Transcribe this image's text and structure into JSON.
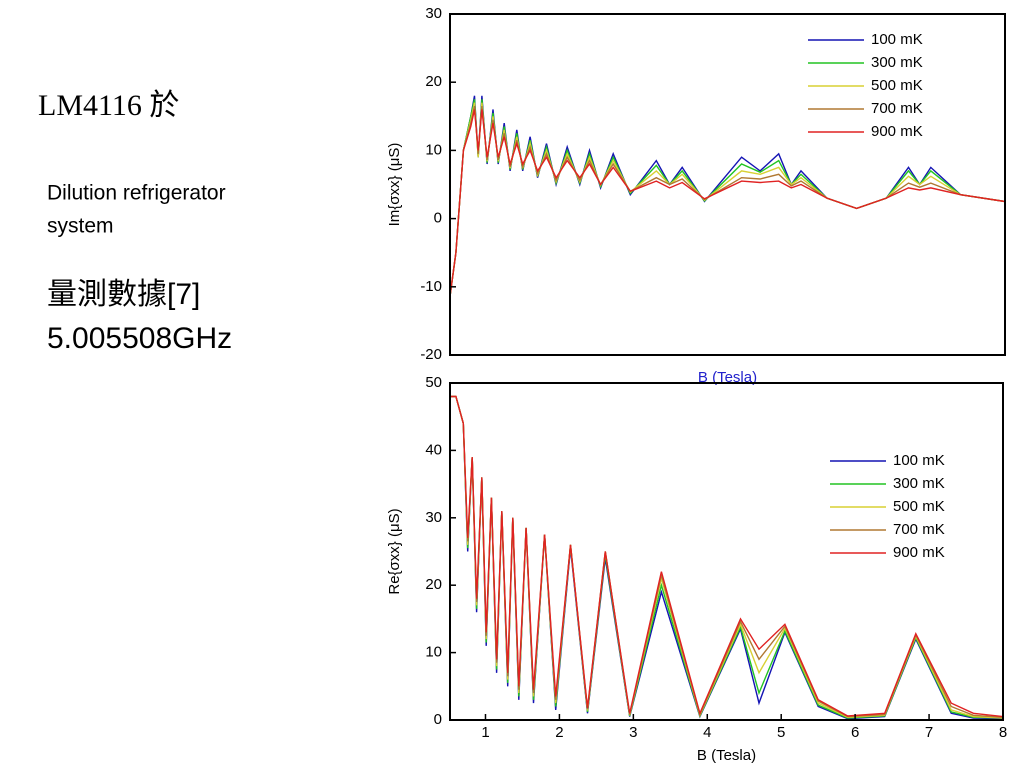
{
  "slide": {
    "title": "LM4116 於",
    "subtitle_lines": [
      "Dilution refrigerator",
      "system"
    ],
    "notes": [
      "量測數據[7]",
      "5.005508GHz"
    ]
  },
  "chart_data": [
    {
      "type": "line",
      "xlabel": "B (Tesla)",
      "ylabel": "Im{σxx} (μS)",
      "xlim": [
        0.52,
        8
      ],
      "ylim": [
        -20,
        30
      ],
      "yticks": [
        -20,
        -10,
        0,
        10,
        20,
        30
      ],
      "x": [
        0.5,
        0.6,
        0.7,
        0.8,
        0.85,
        0.9,
        0.95,
        1.02,
        1.1,
        1.17,
        1.25,
        1.33,
        1.42,
        1.5,
        1.6,
        1.7,
        1.82,
        1.95,
        2.1,
        2.27,
        2.4,
        2.55,
        2.72,
        2.95,
        3.3,
        3.48,
        3.65,
        3.95,
        4.45,
        4.7,
        4.95,
        5.12,
        5.25,
        5.6,
        6.0,
        6.4,
        6.7,
        6.85,
        7.0,
        7.4,
        8
      ],
      "series": [
        {
          "name": "100 mK",
          "color": "#1414b4",
          "values": [
            -13,
            -5,
            10,
            15,
            18,
            9,
            18,
            8,
            16,
            8,
            14,
            7,
            13,
            7,
            12,
            6,
            11,
            5,
            10.5,
            5,
            10,
            4.5,
            9.5,
            3.5,
            8.5,
            5,
            7.5,
            2.5,
            9,
            7,
            9.5,
            5,
            7,
            3,
            1.5,
            3,
            7.5,
            5,
            7.5,
            3.5,
            2.5
          ]
        },
        {
          "name": "300 mK",
          "color": "#22c422",
          "values": [
            -13,
            -5,
            10,
            15,
            17.5,
            9,
            17.5,
            8.2,
            15.5,
            8.2,
            13.5,
            7.2,
            12.5,
            7.2,
            11.5,
            6.2,
            10.5,
            5.2,
            10,
            5.2,
            9.5,
            4.7,
            9,
            3.7,
            7.8,
            5,
            7,
            2.6,
            8,
            6.8,
            8.5,
            5,
            6.5,
            3,
            1.5,
            3,
            7,
            5,
            7,
            3.5,
            2.5
          ]
        },
        {
          "name": "500 mK",
          "color": "#d8d034",
          "values": [
            -13,
            -5,
            10,
            14.5,
            17,
            9,
            17,
            8.4,
            15,
            8.4,
            13,
            7.4,
            12,
            7.4,
            11,
            6.4,
            10,
            5.4,
            9.5,
            5.4,
            9,
            4.9,
            8.5,
            3.9,
            7,
            5,
            6.5,
            2.7,
            7,
            6.5,
            7.5,
            5,
            6,
            3,
            1.5,
            3,
            6.2,
            5,
            6.2,
            3.5,
            2.5
          ]
        },
        {
          "name": "700 mK",
          "color": "#b07832",
          "values": [
            -13,
            -5,
            10,
            14,
            16.5,
            9.5,
            16.5,
            8.6,
            14.5,
            8.6,
            12.5,
            7.6,
            11.5,
            7.6,
            10.5,
            6.6,
            9.5,
            5.6,
            9,
            5.6,
            8.5,
            5,
            8,
            4,
            6,
            5,
            5.8,
            2.8,
            6,
            5.8,
            6.5,
            4.8,
            5.5,
            3,
            1.5,
            3,
            5.2,
            4.6,
            5.2,
            3.5,
            2.5
          ]
        },
        {
          "name": "900 mK",
          "color": "#e02222",
          "values": [
            -13,
            -5,
            10,
            13.5,
            16,
            10,
            16,
            9,
            14,
            9,
            12,
            8,
            11,
            8,
            10,
            7,
            9,
            6,
            8.5,
            6,
            8,
            5,
            7.5,
            4,
            5.5,
            4.5,
            5.3,
            2.9,
            5.5,
            5.3,
            5.5,
            4.5,
            5,
            3,
            1.5,
            3,
            4.5,
            4.2,
            4.5,
            3.5,
            2.5
          ]
        }
      ]
    },
    {
      "type": "line",
      "xlabel": "B (Tesla)",
      "ylabel": "Re{σxx} (μS)",
      "xlim": [
        0.52,
        8
      ],
      "ylim": [
        0,
        50
      ],
      "xticks": [
        1,
        2,
        3,
        4,
        5,
        6,
        7,
        8
      ],
      "yticks": [
        0,
        10,
        20,
        30,
        40,
        50
      ],
      "x": [
        0.5,
        0.6,
        0.7,
        0.76,
        0.82,
        0.88,
        0.95,
        1.01,
        1.08,
        1.15,
        1.22,
        1.3,
        1.37,
        1.45,
        1.55,
        1.65,
        1.8,
        1.95,
        2.15,
        2.38,
        2.62,
        2.95,
        3.38,
        3.9,
        4.45,
        4.7,
        5.05,
        5.5,
        5.9,
        6.4,
        6.82,
        7.3,
        7.6,
        8
      ],
      "series": [
        {
          "name": "100 mK",
          "color": "#1414b4",
          "values": [
            48,
            48,
            44,
            25,
            39,
            16,
            36,
            11,
            33,
            7,
            31,
            5,
            30,
            3,
            28.5,
            2.5,
            27.5,
            1.5,
            25.5,
            1,
            24,
            0.5,
            19,
            0.5,
            13.5,
            2.5,
            13,
            2,
            0.2,
            0.5,
            12,
            1,
            0.3,
            0.2
          ]
        },
        {
          "name": "300 mK",
          "color": "#22c422",
          "values": [
            48,
            48,
            44,
            25.5,
            39,
            16.5,
            36,
            11.5,
            33,
            7.5,
            31,
            5.5,
            30,
            3.5,
            28.5,
            3,
            27.5,
            2,
            26,
            1.2,
            24.5,
            0.6,
            20,
            0.6,
            13.8,
            4,
            13.2,
            2.2,
            0.3,
            0.6,
            12.2,
            1.2,
            0.4,
            0.3
          ]
        },
        {
          "name": "500 mK",
          "color": "#d8d034",
          "values": [
            48,
            48,
            44,
            26,
            39,
            17,
            36,
            12,
            33,
            8,
            31,
            6,
            30,
            4,
            28.5,
            3.5,
            27.5,
            2.5,
            26,
            1.4,
            25,
            0.7,
            21,
            0.7,
            14.2,
            7,
            13.6,
            2.5,
            0.4,
            0.7,
            12.4,
            1.5,
            0.5,
            0.3
          ]
        },
        {
          "name": "700 mK",
          "color": "#b07832",
          "values": [
            48,
            48,
            44,
            26.5,
            39,
            17.5,
            36,
            12.5,
            33,
            8.5,
            31,
            6.5,
            30,
            4.5,
            28.5,
            4,
            27.5,
            3,
            26,
            1.6,
            25,
            0.8,
            21.5,
            0.8,
            14.6,
            9,
            13.9,
            2.8,
            0.5,
            0.8,
            12.6,
            2,
            0.7,
            0.4
          ]
        },
        {
          "name": "900 mK",
          "color": "#e02222",
          "values": [
            48,
            48,
            44,
            27,
            39,
            18,
            36,
            13,
            33,
            9,
            31,
            7,
            30,
            5,
            28.5,
            4.5,
            27.5,
            3.5,
            26,
            1.8,
            25,
            1,
            22,
            1,
            15,
            10.5,
            14.2,
            3,
            0.6,
            1,
            12.8,
            2.5,
            1,
            0.5
          ]
        }
      ]
    }
  ]
}
